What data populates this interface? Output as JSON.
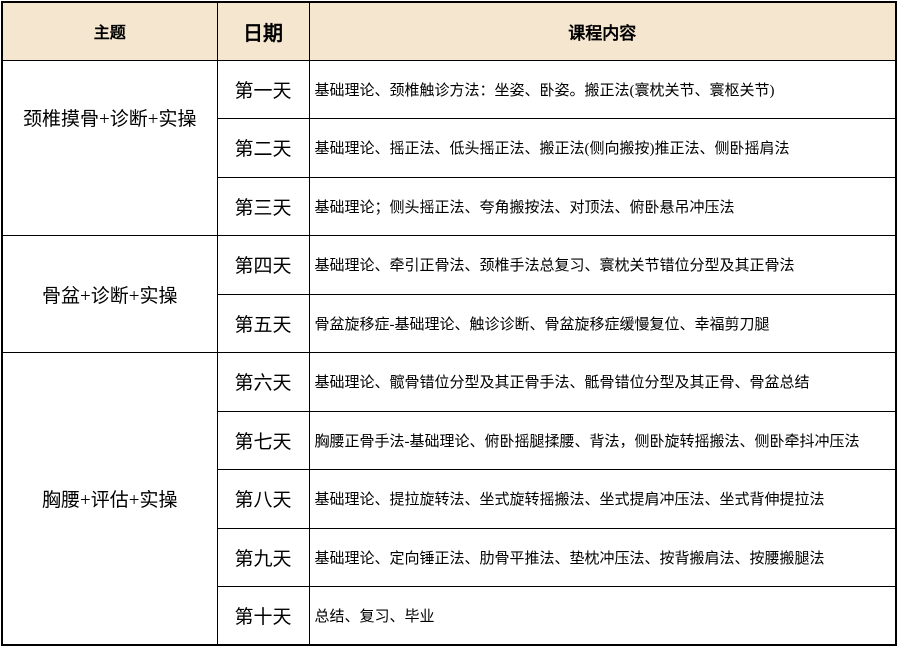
{
  "table": {
    "headers": {
      "topic": "主题",
      "date": "日期",
      "content": "课程内容"
    },
    "groups": [
      {
        "topic": "颈椎摸骨+诊断+实操",
        "rows": [
          {
            "date": "第一天",
            "content": "基础理论、颈椎触诊方法：坐姿、卧姿。搬正法(寰枕关节、寰枢关节)"
          },
          {
            "date": "第二天",
            "content": "基础理论、摇正法、低头摇正法、搬正法(侧向搬按)推正法、侧卧摇肩法"
          },
          {
            "date": "第三天",
            "content": "基础理论；侧头摇正法、夸角搬按法、对顶法、俯卧悬吊冲压法"
          }
        ]
      },
      {
        "topic": "骨盆+诊断+实操",
        "rows": [
          {
            "date": "第四天",
            "content": "基础理论、牵引正骨法、颈椎手法总复习、寰枕关节错位分型及其正骨法"
          },
          {
            "date": "第五天",
            "content": "骨盆旋移症-基础理论、触诊诊断、骨盆旋移症缓慢复位、幸福剪刀腿"
          }
        ]
      },
      {
        "topic": "胸腰+评估+实操",
        "rows": [
          {
            "date": "第六天",
            "content": "基础理论、髋骨错位分型及其正骨手法、骶骨错位分型及其正骨、骨盆总结"
          },
          {
            "date": "第七天",
            "content": "胸腰正骨手法-基础理论、俯卧摇腿揉腰、背法，侧卧旋转摇搬法、侧卧牵抖冲压法"
          },
          {
            "date": "第八天",
            "content": "基础理论、提拉旋转法、坐式旋转摇搬法、坐式提肩冲压法、坐式背伸提拉法"
          },
          {
            "date": "第九天",
            "content": "基础理论、定向锤正法、肋骨平推法、垫枕冲压法、按背搬肩法、按腰搬腿法"
          },
          {
            "date": "第十天",
            "content": "总结、复习、毕业"
          }
        ]
      }
    ],
    "colors": {
      "header_bg": "#f5e6d0",
      "border": "#000000"
    }
  }
}
